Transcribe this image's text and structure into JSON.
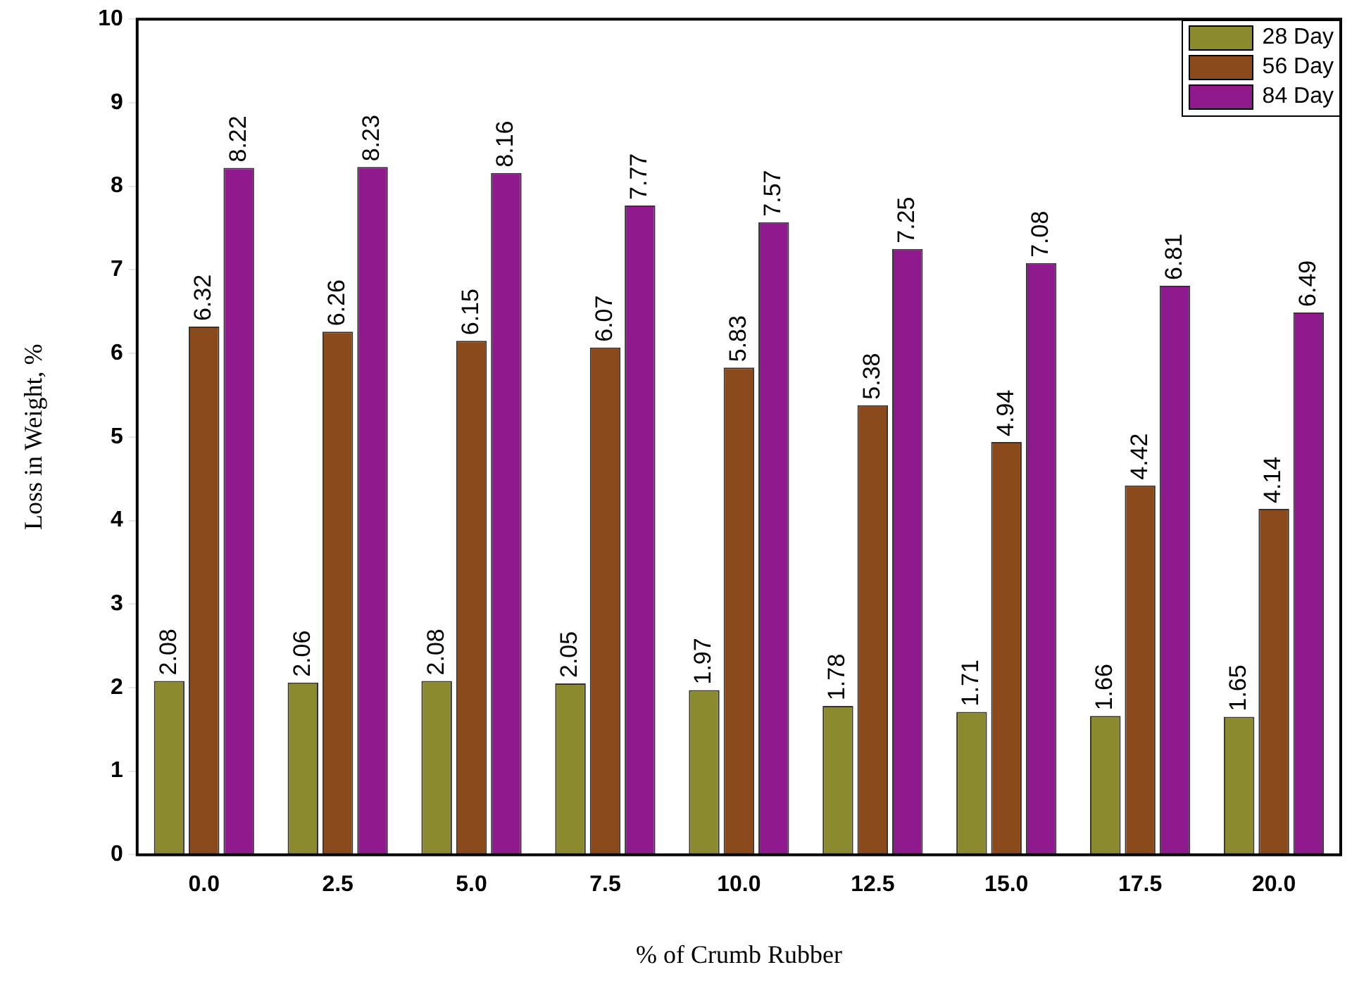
{
  "chart_data": {
    "type": "bar",
    "xlabel": "% of Crumb Rubber",
    "ylabel": "Loss in Weight, %",
    "categories": [
      "0.0",
      "2.5",
      "5.0",
      "7.5",
      "10.0",
      "12.5",
      "15.0",
      "17.5",
      "20.0"
    ],
    "series": [
      {
        "name": "28 Day",
        "color": "#8c8a2e",
        "values": [
          2.08,
          2.06,
          2.08,
          2.05,
          1.97,
          1.78,
          1.71,
          1.66,
          1.65
        ]
      },
      {
        "name": "56 Day",
        "color": "#8b4a1c",
        "values": [
          6.32,
          6.26,
          6.15,
          6.07,
          5.83,
          5.38,
          4.94,
          4.42,
          4.14
        ]
      },
      {
        "name": "84 Day",
        "color": "#8e1a8e",
        "values": [
          8.22,
          8.23,
          8.16,
          7.77,
          7.57,
          7.25,
          7.08,
          6.81,
          6.49
        ]
      }
    ],
    "ylim": [
      0,
      10
    ],
    "yticks": [
      0,
      1,
      2,
      3,
      4,
      5,
      6,
      7,
      8,
      9,
      10
    ],
    "grid": false,
    "legend": "top right",
    "data_labels": true
  }
}
